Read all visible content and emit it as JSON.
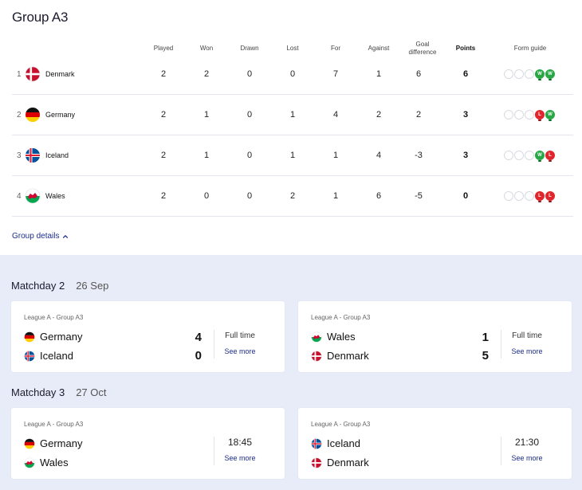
{
  "group": {
    "title": "Group A3",
    "details_label": "Group details"
  },
  "table": {
    "headers": {
      "played": "Played",
      "won": "Won",
      "drawn": "Drawn",
      "lost": "Lost",
      "for": "For",
      "against": "Against",
      "gd_1": "Goal",
      "gd_2": "difference",
      "points": "Points",
      "form": "Form guide"
    },
    "rows": [
      {
        "pos": "1",
        "team": "Denmark",
        "flag": "denmark-flag-icon",
        "played": "2",
        "won": "2",
        "drawn": "0",
        "lost": "0",
        "gf": "7",
        "ga": "1",
        "gd": "6",
        "pts": "6",
        "form": [
          "",
          "",
          "",
          "W",
          "W"
        ]
      },
      {
        "pos": "2",
        "team": "Germany",
        "flag": "germany-flag-icon",
        "played": "2",
        "won": "1",
        "drawn": "0",
        "lost": "1",
        "gf": "4",
        "ga": "2",
        "gd": "2",
        "pts": "3",
        "form": [
          "",
          "",
          "",
          "L",
          "W"
        ]
      },
      {
        "pos": "3",
        "team": "Iceland",
        "flag": "iceland-flag-icon",
        "played": "2",
        "won": "1",
        "drawn": "0",
        "lost": "1",
        "gf": "1",
        "ga": "4",
        "gd": "-3",
        "pts": "3",
        "form": [
          "",
          "",
          "",
          "W",
          "L"
        ]
      },
      {
        "pos": "4",
        "team": "Wales",
        "flag": "wales-flag-icon",
        "played": "2",
        "won": "0",
        "drawn": "0",
        "lost": "2",
        "gf": "1",
        "ga": "6",
        "gd": "-5",
        "pts": "0",
        "form": [
          "",
          "",
          "",
          "L",
          "L"
        ]
      }
    ]
  },
  "matchdays": [
    {
      "title": "Matchday 2",
      "date": "26 Sep",
      "matches": [
        {
          "league": "League A - Group A3",
          "home": "Germany",
          "away": "Iceland",
          "home_score": "4",
          "away_score": "0",
          "status": "Full time",
          "see_more": "See more"
        },
        {
          "league": "League A - Group A3",
          "home": "Wales",
          "away": "Denmark",
          "home_score": "1",
          "away_score": "5",
          "status": "Full time",
          "see_more": "See more"
        }
      ]
    },
    {
      "title": "Matchday 3",
      "date": "27 Oct",
      "matches": [
        {
          "league": "League A - Group A3",
          "home": "Germany",
          "away": "Wales",
          "time": "18:45",
          "see_more": "See more"
        },
        {
          "league": "League A - Group A3",
          "home": "Iceland",
          "away": "Denmark",
          "time": "21:30",
          "see_more": "See more"
        }
      ]
    }
  ],
  "colors": {
    "win": "#27a844",
    "loss": "#e0262c",
    "link": "#1c2c8c",
    "bottom_bg": "#e8ecf8"
  }
}
